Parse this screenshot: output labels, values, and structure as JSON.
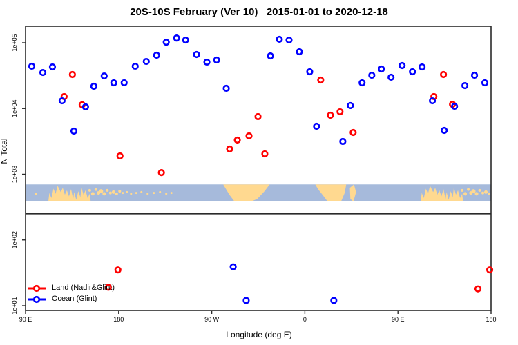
{
  "title": "20S-10S February (Ver 10)   2015-01-01 to 2020-12-18",
  "legend": {
    "items": [
      {
        "label": "Land (Nadir&Glint)",
        "color": "#ff0000"
      },
      {
        "label": "Ocean (Glint)",
        "color": "#0000ff"
      }
    ]
  },
  "chart_data": {
    "type": "scatter",
    "title": "20S-10S February (Ver 10)   2015-01-01 to 2020-12-18",
    "xlabel": "Longitude (deg E)",
    "ylabel": "N Total",
    "x_axis": {
      "range_deg": [
        90,
        540
      ],
      "note": "longitude axis wraps eastward: 90E to 180 to 90W to 0 to 90E to 180",
      "ticks": [
        {
          "deg": 90,
          "label": "90 E"
        },
        {
          "deg": 180,
          "label": "180"
        },
        {
          "deg": 270,
          "label": "90 W"
        },
        {
          "deg": 360,
          "label": "0"
        },
        {
          "deg": 450,
          "label": "90 E"
        },
        {
          "deg": 540,
          "label": "180"
        }
      ]
    },
    "y_axis": {
      "scale": "log10",
      "range": [
        8,
        180000
      ],
      "ticks": [
        {
          "value": 10,
          "label": "1e+01"
        },
        {
          "value": 100,
          "label": "1e+02"
        },
        {
          "value": 1000,
          "label": "1e+03"
        },
        {
          "value": 10000,
          "label": "1e+04"
        },
        {
          "value": 100000,
          "label": "1e+05"
        }
      ],
      "grid": false
    },
    "separator_line_value": 250,
    "map_band": {
      "top_value": 700,
      "bottom_value": 385,
      "ocean_color": "#a6badb",
      "land_color": "#ffd990",
      "land_polygons": [
        {
          "name": "australia",
          "offsets": [
            0,
            360
          ],
          "points": [
            [
              112,
              1
            ],
            [
              113,
              0.5
            ],
            [
              115,
              0.8
            ],
            [
              117,
              0.25
            ],
            [
              119,
              0.55
            ],
            [
              121,
              0.08
            ],
            [
              124,
              0.45
            ],
            [
              126,
              0.2
            ],
            [
              128,
              0.6
            ],
            [
              130,
              0.35
            ],
            [
              132,
              0.7
            ],
            [
              134,
              0.28
            ],
            [
              136,
              0.85
            ],
            [
              137,
              0.45
            ],
            [
              139,
              0.9
            ],
            [
              141,
              0.4
            ],
            [
              143,
              0.75
            ],
            [
              144,
              0.18
            ],
            [
              146,
              0.6
            ],
            [
              148,
              0.35
            ],
            [
              150,
              0.8
            ],
            [
              152,
              0.55
            ],
            [
              153,
              1
            ]
          ]
        },
        {
          "name": "south-america",
          "offsets": [
            0
          ],
          "points": [
            [
              281,
              0
            ],
            [
              326,
              0
            ],
            [
              321,
              0.4
            ],
            [
              314,
              0.85
            ],
            [
              308,
              1
            ],
            [
              292,
              1
            ],
            [
              287,
              0.6
            ],
            [
              284,
              0.3
            ]
          ]
        },
        {
          "name": "africa",
          "offsets": [
            0
          ],
          "points": [
            [
              370,
              0
            ],
            [
              400,
              0
            ],
            [
              398.5,
              0.5
            ],
            [
              395,
              1
            ],
            [
              382,
              1
            ],
            [
              377,
              0.6
            ],
            [
              373,
              0.3
            ]
          ]
        },
        {
          "name": "madagascar",
          "offsets": [
            0
          ],
          "points": [
            [
              403.5,
              0.2
            ],
            [
              407.5,
              0
            ],
            [
              409.5,
              0.45
            ],
            [
              407,
              1
            ],
            [
              404,
              0.85
            ]
          ]
        }
      ],
      "island_dots": [
        [
          100,
          0.55,
          1.5
        ],
        [
          152,
          0.35,
          2
        ],
        [
          155,
          0.55,
          2.5
        ],
        [
          158,
          0.3,
          2
        ],
        [
          160.5,
          0.5,
          2.5
        ],
        [
          163,
          0.4,
          3
        ],
        [
          166,
          0.55,
          2.5
        ],
        [
          169,
          0.35,
          2
        ],
        [
          172,
          0.5,
          2
        ],
        [
          175,
          0.45,
          2.5
        ],
        [
          178,
          0.55,
          2
        ],
        [
          181,
          0.4,
          2
        ],
        [
          184,
          0.5,
          1.5
        ],
        [
          188,
          0.45,
          1.5
        ],
        [
          192,
          0.55,
          1.5
        ],
        [
          197,
          0.5,
          1.5
        ],
        [
          202,
          0.45,
          1.5
        ],
        [
          208,
          0.55,
          1.5
        ],
        [
          214,
          0.5,
          1.5
        ],
        [
          220,
          0.45,
          1.5
        ],
        [
          226,
          0.55,
          1.5
        ],
        [
          231,
          0.5,
          1.5
        ],
        [
          512,
          0.35,
          2
        ],
        [
          515,
          0.55,
          2.5
        ],
        [
          518,
          0.3,
          2
        ],
        [
          520.5,
          0.5,
          2.5
        ],
        [
          523,
          0.4,
          3
        ],
        [
          526,
          0.55,
          2.5
        ],
        [
          529,
          0.35,
          2
        ],
        [
          532,
          0.5,
          2
        ],
        [
          535,
          0.45,
          2.5
        ],
        [
          538,
          0.55,
          2
        ]
      ]
    },
    "series": [
      {
        "name": "Land (Nadir&Glint)",
        "color": "#ff0000",
        "marker": "open-circle",
        "points": [
          [
            127.3,
            15200
          ],
          [
            135.3,
            32900
          ],
          [
            144.7,
            11400
          ],
          [
            181.3,
            1900
          ],
          [
            221.3,
            1060
          ],
          [
            287.3,
            2420
          ],
          [
            294.7,
            3310
          ],
          [
            306,
            3830
          ],
          [
            314.7,
            7530
          ],
          [
            321.3,
            2040
          ],
          [
            375.3,
            27100
          ],
          [
            384.7,
            7900
          ],
          [
            394,
            8910
          ],
          [
            406.7,
            4320
          ],
          [
            484.7,
            15200
          ],
          [
            494,
            32900
          ],
          [
            502.7,
            11600
          ],
          [
            170,
            19
          ],
          [
            179.3,
            35
          ],
          [
            527.3,
            18
          ],
          [
            538.7,
            35
          ]
        ]
      },
      {
        "name": "Ocean (Glint)",
        "color": "#0000ff",
        "marker": "open-circle",
        "points": [
          [
            96,
            44000
          ],
          [
            106.7,
            35300
          ],
          [
            116,
            42900
          ],
          [
            125.3,
            13100
          ],
          [
            136.7,
            4530
          ],
          [
            148,
            10600
          ],
          [
            156,
            21800
          ],
          [
            166,
            31300
          ],
          [
            175.3,
            24600
          ],
          [
            185.3,
            24600
          ],
          [
            196,
            44000
          ],
          [
            206.7,
            52000
          ],
          [
            216.7,
            64700
          ],
          [
            226,
            102000
          ],
          [
            236,
            118000
          ],
          [
            244.7,
            110000
          ],
          [
            255.3,
            66300
          ],
          [
            265.3,
            50800
          ],
          [
            274.7,
            54700
          ],
          [
            284,
            20300
          ],
          [
            326.7,
            63200
          ],
          [
            335.3,
            113000
          ],
          [
            344.7,
            110000
          ],
          [
            354.7,
            73000
          ],
          [
            364.7,
            36200
          ],
          [
            371.3,
            5370
          ],
          [
            396.7,
            3150
          ],
          [
            404,
            11100
          ],
          [
            415.3,
            24600
          ],
          [
            424.7,
            32100
          ],
          [
            434,
            39900
          ],
          [
            443.3,
            29900
          ],
          [
            454,
            45000
          ],
          [
            464,
            36200
          ],
          [
            473.3,
            42900
          ],
          [
            483.3,
            13100
          ],
          [
            494.7,
            4640
          ],
          [
            504.7,
            10800
          ],
          [
            514.7,
            22300
          ],
          [
            524,
            32100
          ],
          [
            534,
            24600
          ],
          [
            290.7,
            39
          ],
          [
            303.3,
            12
          ],
          [
            388,
            12
          ]
        ]
      }
    ]
  }
}
